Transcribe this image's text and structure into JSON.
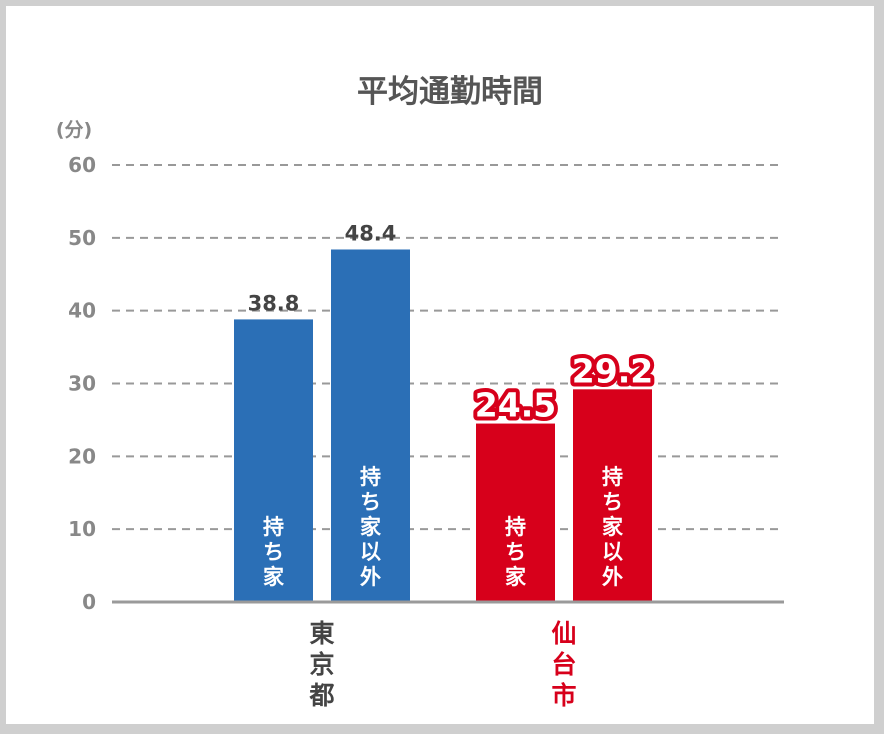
{
  "chart_data": {
    "type": "bar",
    "title": "平均通勤時間",
    "y_unit_label": "(分)",
    "ylim": [
      0,
      60
    ],
    "yticks": [
      0,
      10,
      20,
      30,
      40,
      50,
      60
    ],
    "grid": "dashed-horizontal",
    "groups": [
      {
        "name": "東京都",
        "color": "#2b6fb6",
        "label_color": "#444444",
        "bars": [
          {
            "label": "持ち家",
            "value": 38.8,
            "value_label": "38.8"
          },
          {
            "label": "持ち家以外",
            "value": 48.4,
            "value_label": "48.4"
          }
        ]
      },
      {
        "name": "仙台市",
        "color": "#d7001b",
        "label_color": "#d7001b",
        "bars": [
          {
            "label": "持ち家",
            "value": 24.5,
            "value_label": "24.5"
          },
          {
            "label": "持ち家以外",
            "value": 29.2,
            "value_label": "29.2"
          }
        ]
      }
    ]
  }
}
